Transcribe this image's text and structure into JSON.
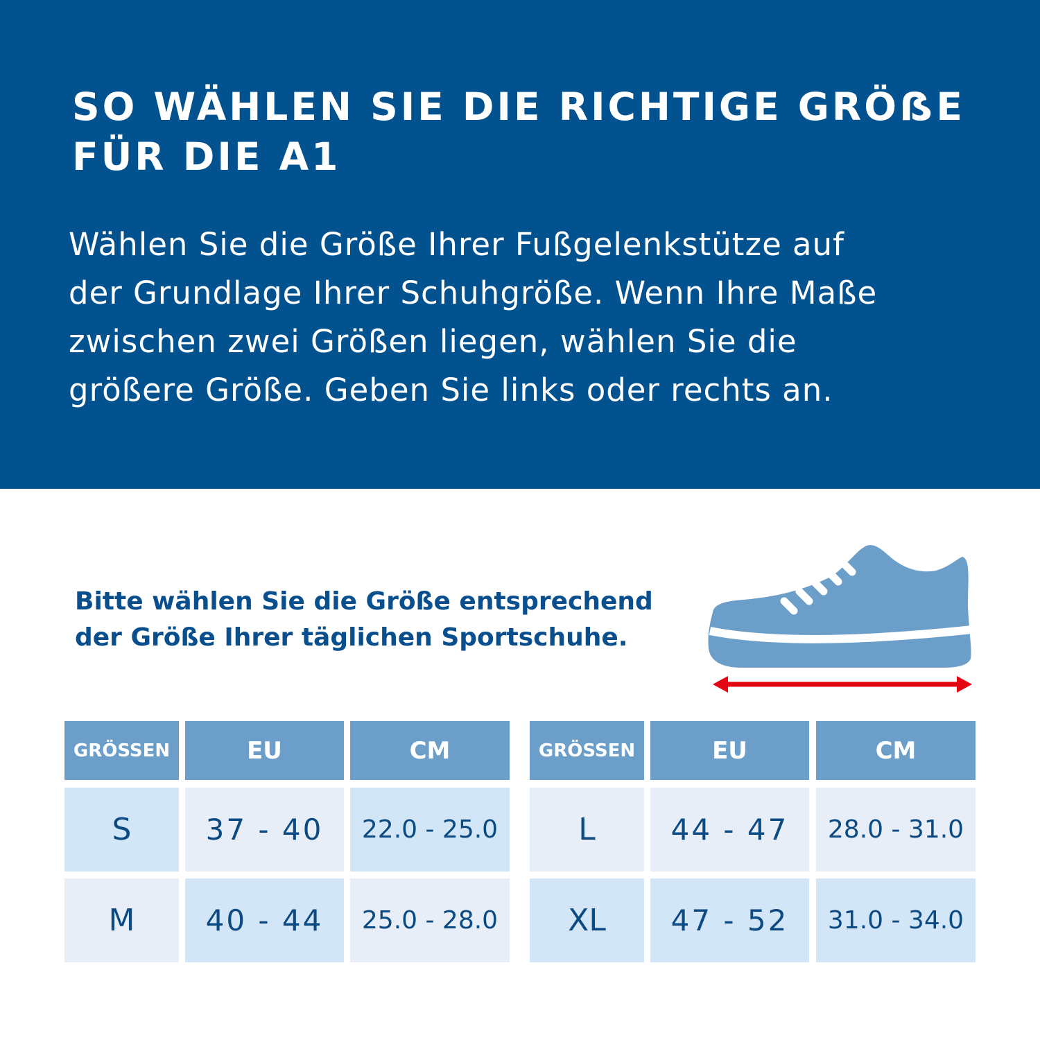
{
  "banner": {
    "title_line1": "SO WÄHLEN SIE DIE RICHTIGE GRÖẞE",
    "title_line2": "FÜR DIE A1",
    "intro": [
      "Wählen Sie die Größe Ihrer Fußgelenkstütze auf",
      "der Grundlage Ihrer Schuhgröße. Wenn Ihre Maße",
      "zwischen zwei Größen liegen, wählen Sie die",
      "größere Größe. Geben Sie links oder rechts an."
    ],
    "color": "#02528f"
  },
  "hint": {
    "line1": "Bitte wählen Sie die Größe entsprechend",
    "line2": "der Größe Ihrer täglichen Sportschuhe."
  },
  "icons": {
    "shoe": "sneaker-icon",
    "arrow": "double-arrow-icon",
    "arrow_color": "#e30613",
    "shoe_color": "#6b9ec8"
  },
  "table_left": {
    "headers": [
      "GRÖSSEN",
      "EU",
      "CM"
    ],
    "rows": [
      [
        "S",
        "37 - 40",
        "22.0 - 25.0"
      ],
      [
        "M",
        "40 - 44",
        "25.0 - 28.0"
      ]
    ]
  },
  "table_right": {
    "headers": [
      "GRÖSSEN",
      "EU",
      "CM"
    ],
    "rows": [
      [
        "L",
        "44 - 47",
        "28.0 - 31.0"
      ],
      [
        "XL",
        "47 - 52",
        "31.0 - 34.0"
      ]
    ]
  }
}
